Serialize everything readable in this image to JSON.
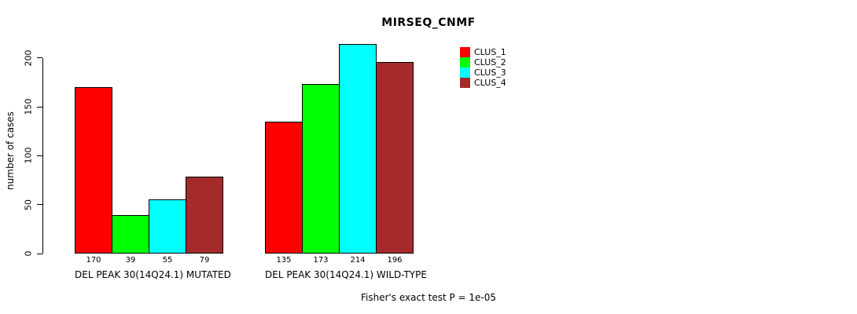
{
  "chart_data": {
    "type": "bar",
    "title": "MIRSEQ_CNMF",
    "xlabel": "",
    "ylabel": "number of cases",
    "ylim": [
      0,
      215
    ],
    "yticks": [
      0,
      50,
      100,
      150,
      200
    ],
    "grid": false,
    "legend_position": "right",
    "categories": [
      "DEL PEAK 30(14Q24.1) MUTATED",
      "DEL PEAK 30(14Q24.1) WILD-TYPE"
    ],
    "series": [
      {
        "name": "CLUS_1",
        "color": "#ff0000",
        "values": [
          170,
          135
        ]
      },
      {
        "name": "CLUS_2",
        "color": "#00ff00",
        "values": [
          39,
          173
        ]
      },
      {
        "name": "CLUS_3",
        "color": "#00ffff",
        "values": [
          55,
          214
        ]
      },
      {
        "name": "CLUS_4",
        "color": "#a52a2a",
        "values": [
          79,
          196
        ]
      }
    ],
    "annotation": "Fisher's exact test P = 1e-05"
  }
}
